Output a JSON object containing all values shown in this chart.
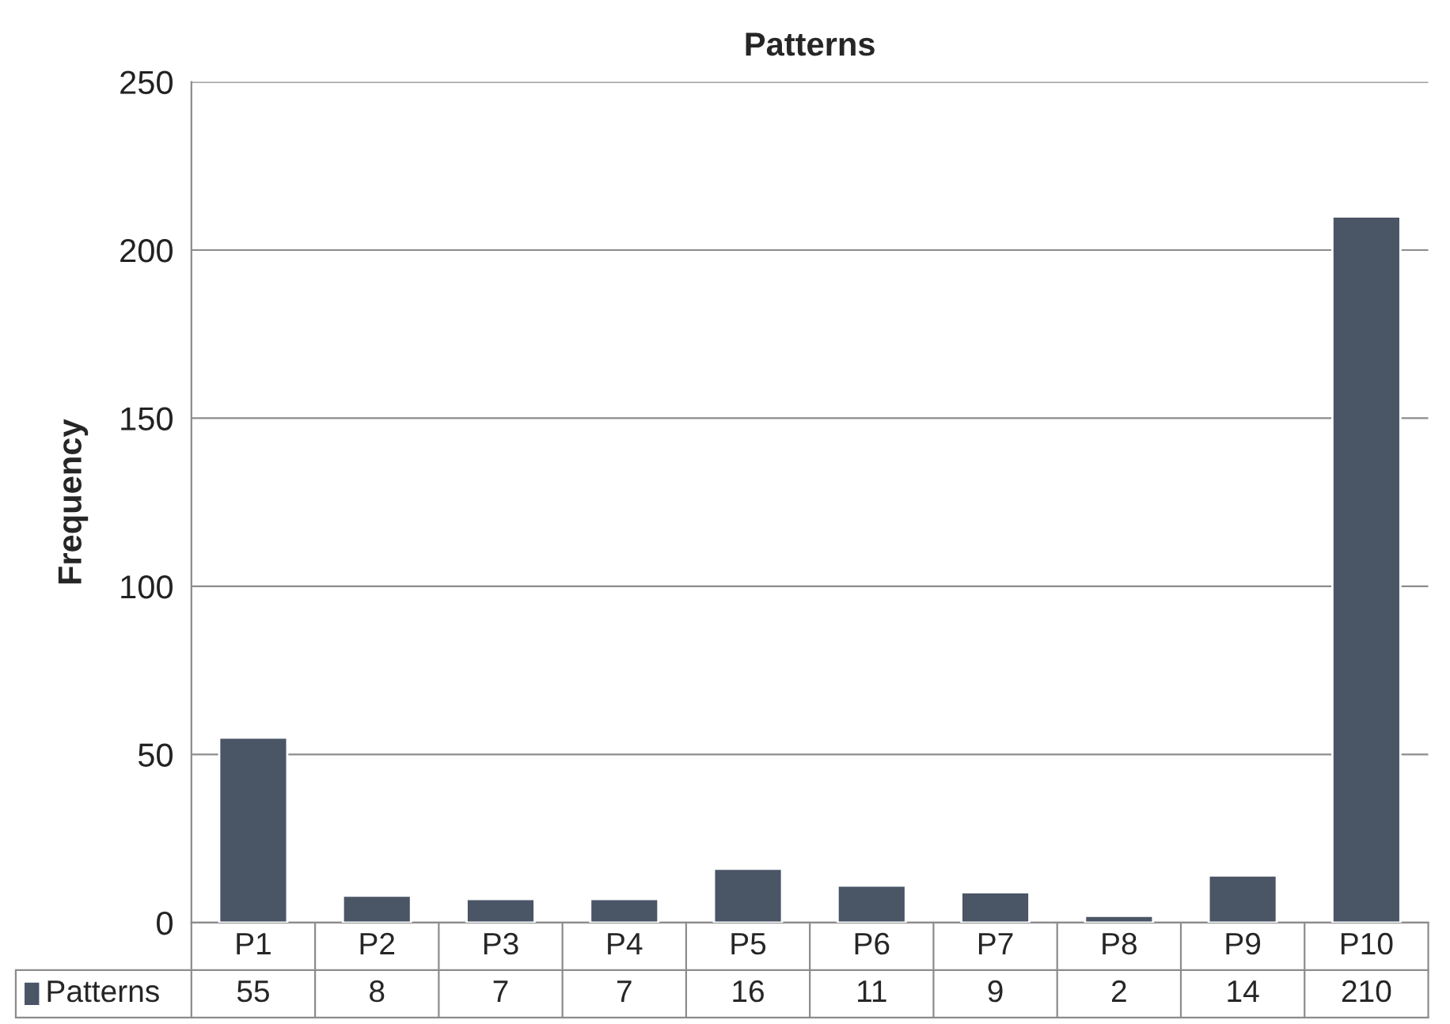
{
  "chart_data": {
    "type": "bar",
    "title": "Patterns",
    "ylabel": "Frequency",
    "categories": [
      "P1",
      "P2",
      "P3",
      "P4",
      "P5",
      "P6",
      "P7",
      "P8",
      "P9",
      "P10"
    ],
    "series": [
      {
        "name": "Patterns",
        "color": "#4a5566",
        "values": [
          55,
          8,
          7,
          7,
          16,
          11,
          9,
          2,
          14,
          210
        ]
      }
    ],
    "ylim": [
      0,
      250
    ],
    "yticks": [
      0,
      50,
      100,
      150,
      200,
      250
    ],
    "grid": "y",
    "legend": "bottom",
    "data_labels": true
  }
}
